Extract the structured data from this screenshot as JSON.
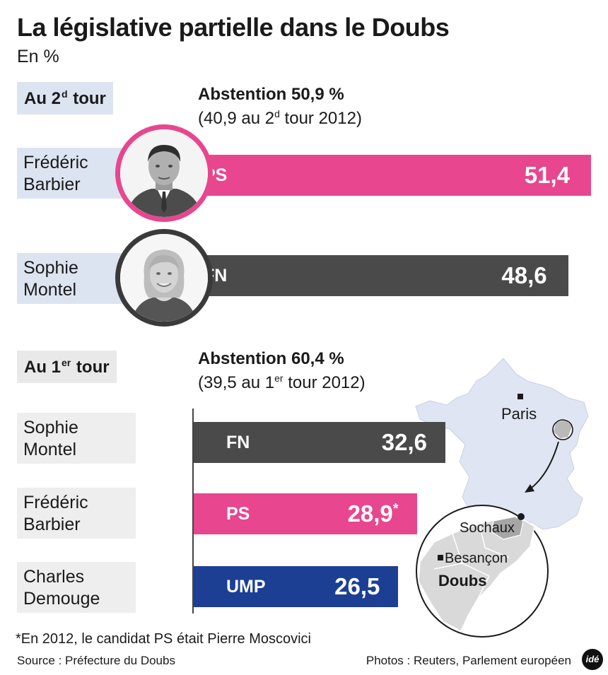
{
  "header": {
    "title": "La législative partielle dans le Doubs",
    "unit": "En %"
  },
  "round2": {
    "label_a": "Au 2",
    "label_sup": "d",
    "label_b": " tour",
    "abstention": "Abstention 50,9 %",
    "prev_a": "(40,9 au 2",
    "prev_sup": "d",
    "prev_b": " tour 2012)",
    "candidates": [
      {
        "first": "Frédéric",
        "last": "Barbier",
        "party": "PS",
        "value": 51.4,
        "value_label": "51,4",
        "color": "#e8468e"
      },
      {
        "first": "Sophie",
        "last": "Montel",
        "party": "FN",
        "value": 48.6,
        "value_label": "48,6",
        "color": "#4a4a4a"
      }
    ]
  },
  "round1": {
    "label_a": "Au 1",
    "label_sup": "er",
    "label_b": " tour",
    "abstention": "Abstention 60,4 %",
    "prev_a": "(39,5 au 1",
    "prev_sup": "er",
    "prev_b": " tour 2012)",
    "candidates": [
      {
        "first": "Sophie",
        "last": "Montel",
        "party": "FN",
        "value": 32.6,
        "value_label": "32,6",
        "note": "",
        "color": "#4a4a4a"
      },
      {
        "first": "Frédéric",
        "last": "Barbier",
        "party": "PS",
        "value": 28.9,
        "value_label": "28,9",
        "note": "*",
        "color": "#e8468e"
      },
      {
        "first": "Charles",
        "last": "Demouge",
        "party": "UMP",
        "value": 26.5,
        "value_label": "26,5",
        "note": "",
        "color": "#1c3f94"
      }
    ]
  },
  "chart_data": [
    {
      "type": "bar",
      "categories": [
        "Frédéric Barbier",
        "Sophie Montel"
      ],
      "series": [
        {
          "values": [
            51.4,
            48.6
          ]
        }
      ],
      "parties": [
        "PS",
        "FN"
      ],
      "colors": [
        "#e8468e",
        "#4a4a4a"
      ],
      "title": "Au 2d tour",
      "ylabel": "En %"
    },
    {
      "type": "bar",
      "categories": [
        "Sophie Montel",
        "Frédéric Barbier",
        "Charles Demouge"
      ],
      "series": [
        {
          "values": [
            32.6,
            28.9,
            26.5
          ]
        }
      ],
      "parties": [
        "FN",
        "PS",
        "UMP"
      ],
      "colors": [
        "#4a4a4a",
        "#e8468e",
        "#1c3f94"
      ],
      "title": "Au 1er tour",
      "ylabel": "En %"
    }
  ],
  "map": {
    "paris": "Paris",
    "sochaux": "Sochaux",
    "besancon": "Besançon",
    "doubs": "Doubs",
    "country_color": "#dfe5f2",
    "region_color": "#d9d9d9"
  },
  "footer": {
    "footnote": "*En 2012, le candidat PS était Pierre Moscovici",
    "source": "Source : Préfecture du Doubs",
    "photos": "Photos : Reuters, Parlement européen",
    "logo": "idé"
  }
}
